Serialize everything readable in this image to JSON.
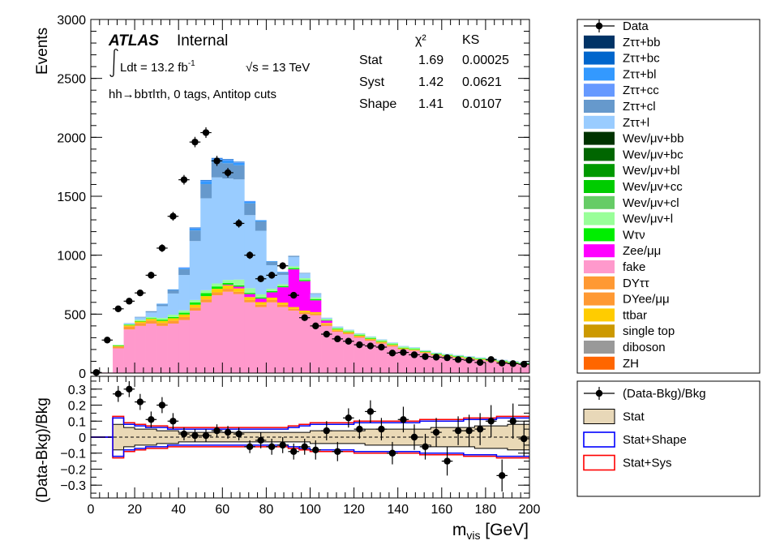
{
  "chart_data": [
    {
      "type": "bar",
      "stacked": true,
      "panel": "main",
      "xlim": [
        0,
        200
      ],
      "ylim": [
        0,
        3000
      ],
      "ylabel": "Events",
      "x_ticks": [
        0,
        20,
        40,
        60,
        80,
        100,
        120,
        140,
        160,
        180,
        200
      ],
      "y_ticks": [
        0,
        500,
        1000,
        1500,
        2000,
        2500,
        3000
      ],
      "bin_edges": [
        0,
        5,
        10,
        15,
        20,
        25,
        30,
        35,
        40,
        45,
        50,
        55,
        60,
        65,
        70,
        75,
        80,
        85,
        90,
        95,
        100,
        105,
        110,
        115,
        120,
        125,
        130,
        135,
        140,
        145,
        150,
        155,
        160,
        165,
        170,
        175,
        180,
        185,
        190,
        195,
        200
      ],
      "atlas_label": "ATLAS",
      "internal_label": "Internal",
      "lumi_prefix": "Ldt = 13.2 fb",
      "lumi_exponent": "-1",
      "energy_label": "√s = 13 TeV",
      "channel_label": "hh→bbτlτh, 0 tags, Antitop cuts",
      "stats_table": {
        "headers": [
          "χ²",
          "KS"
        ],
        "rows": [
          {
            "name": "Stat",
            "chi2": "1.69",
            "ks": "0.00025"
          },
          {
            "name": "Syst",
            "chi2": "1.42",
            "ks": "0.0621"
          },
          {
            "name": "Shape",
            "chi2": "1.41",
            "ks": "0.0107"
          }
        ]
      },
      "series": [
        {
          "name": "fake",
          "color": "#ff99cc",
          "values": [
            0,
            5,
            210,
            370,
            400,
            420,
            400,
            420,
            450,
            530,
            600,
            660,
            690,
            670,
            600,
            560,
            600,
            560,
            530,
            500,
            490,
            400,
            350,
            330,
            300,
            275,
            250,
            225,
            200,
            190,
            170,
            150,
            140,
            130,
            120,
            110,
            100,
            90,
            80,
            70
          ]
        },
        {
          "name": "DYττ",
          "color": "#ff9933",
          "values": [
            0,
            0,
            15,
            25,
            25,
            25,
            25,
            25,
            25,
            25,
            25,
            25,
            25,
            20,
            20,
            20,
            20,
            20,
            15,
            15,
            15,
            15,
            10,
            10,
            10,
            10,
            10,
            10,
            5,
            5,
            5,
            5,
            5,
            5,
            5,
            5,
            5,
            5,
            5,
            5
          ]
        },
        {
          "name": "ttbar",
          "color": "#ffcc00",
          "values": [
            0,
            0,
            5,
            10,
            12,
            15,
            18,
            20,
            22,
            25,
            28,
            30,
            30,
            28,
            25,
            22,
            20,
            18,
            15,
            15,
            12,
            10,
            10,
            8,
            8,
            6,
            6,
            5,
            5,
            4,
            4,
            4,
            3,
            3,
            3,
            3,
            2,
            2,
            2,
            2
          ]
        },
        {
          "name": "Zee/μμ",
          "color": "#ff00ff",
          "values": [
            0,
            0,
            0,
            0,
            0,
            0,
            0,
            0,
            0,
            0,
            0,
            0,
            5,
            15,
            25,
            30,
            45,
            130,
            320,
            250,
            100,
            20,
            0,
            0,
            0,
            0,
            0,
            0,
            0,
            0,
            0,
            0,
            0,
            0,
            0,
            0,
            0,
            0,
            0,
            0
          ]
        },
        {
          "name": "Wτν",
          "color": "#00ee00",
          "values": [
            0,
            0,
            5,
            5,
            5,
            5,
            10,
            10,
            15,
            20,
            25,
            20,
            15,
            10,
            10,
            10,
            10,
            10,
            10,
            10,
            10,
            5,
            5,
            5,
            5,
            5,
            5,
            5,
            5,
            5,
            5,
            5,
            5,
            5,
            5,
            5,
            5,
            5,
            5,
            5
          ]
        },
        {
          "name": "Wev/μv+l",
          "color": "#99ff99",
          "values": [
            0,
            0,
            5,
            5,
            10,
            10,
            15,
            20,
            20,
            20,
            25,
            25,
            25,
            50,
            40,
            25,
            20,
            15,
            15,
            15,
            15,
            10,
            10,
            10,
            10,
            10,
            10,
            10,
            10,
            10,
            5,
            5,
            5,
            5,
            5,
            5,
            5,
            5,
            5,
            5
          ]
        },
        {
          "name": "Zττ+l",
          "color": "#99ccff",
          "values": [
            0,
            0,
            0,
            10,
            20,
            40,
            100,
            180,
            300,
            500,
            780,
            900,
            860,
            850,
            620,
            540,
            200,
            80,
            80,
            40,
            30,
            10,
            10,
            5,
            5,
            5,
            5,
            5,
            5,
            5,
            5,
            5,
            5,
            5,
            5,
            5,
            5,
            5,
            5,
            5
          ]
        },
        {
          "name": "Zττ+cl",
          "color": "#6699cc",
          "values": [
            0,
            0,
            0,
            0,
            5,
            10,
            15,
            30,
            50,
            90,
            120,
            130,
            130,
            120,
            100,
            80,
            30,
            20,
            10,
            5,
            5,
            0,
            0,
            0,
            0,
            0,
            0,
            0,
            0,
            0,
            0,
            0,
            0,
            0,
            0,
            0,
            0,
            0,
            0,
            0
          ]
        },
        {
          "name": "Zττ+bl",
          "color": "#3399ff",
          "values": [
            0,
            0,
            0,
            0,
            0,
            0,
            5,
            5,
            10,
            15,
            25,
            25,
            25,
            20,
            15,
            10,
            5,
            5,
            0,
            0,
            0,
            0,
            0,
            0,
            0,
            0,
            0,
            0,
            0,
            0,
            0,
            0,
            0,
            0,
            0,
            0,
            0,
            0,
            0,
            0
          ]
        },
        {
          "name": "Zττ+cc",
          "color": "#6699ff",
          "values": [
            0,
            0,
            0,
            0,
            0,
            0,
            0,
            0,
            5,
            5,
            5,
            5,
            5,
            5,
            5,
            0,
            0,
            0,
            0,
            0,
            0,
            0,
            0,
            0,
            0,
            0,
            0,
            0,
            0,
            0,
            0,
            0,
            0,
            0,
            0,
            0,
            0,
            0,
            0,
            0
          ]
        },
        {
          "name": "Zττ+bc",
          "color": "#0066cc",
          "values": [
            0,
            0,
            0,
            0,
            0,
            0,
            0,
            0,
            0,
            5,
            5,
            5,
            5,
            5,
            0,
            0,
            0,
            0,
            0,
            0,
            0,
            0,
            0,
            0,
            0,
            0,
            0,
            0,
            0,
            0,
            0,
            0,
            0,
            0,
            0,
            0,
            0,
            0,
            0,
            0
          ]
        },
        {
          "name": "Zττ+bb",
          "color": "#003366",
          "values": [
            0,
            0,
            0,
            0,
            0,
            0,
            0,
            0,
            0,
            0,
            0,
            0,
            0,
            0,
            0,
            0,
            0,
            0,
            0,
            0,
            0,
            0,
            0,
            0,
            0,
            0,
            0,
            0,
            0,
            0,
            0,
            0,
            0,
            0,
            0,
            0,
            0,
            0,
            0,
            0
          ]
        }
      ],
      "data": {
        "name": "Data",
        "y": [
          5,
          280,
          545,
          610,
          680,
          830,
          1060,
          1330,
          1640,
          1960,
          2040,
          1800,
          1700,
          1270,
          1000,
          800,
          830,
          910,
          660,
          470,
          400,
          330,
          290,
          270,
          240,
          230,
          220,
          170,
          175,
          155,
          140,
          135,
          130,
          115,
          110,
          90,
          115,
          85,
          80,
          75
        ],
        "yerr": [
          3,
          17,
          23,
          25,
          26,
          29,
          33,
          37,
          41,
          44,
          45,
          43,
          41,
          36,
          32,
          28,
          29,
          30,
          26,
          22,
          20,
          18,
          17,
          16,
          16,
          15,
          15,
          13,
          13,
          12,
          12,
          12,
          11,
          11,
          10,
          9,
          11,
          9,
          9,
          9
        ]
      },
      "legend": {
        "placement": "right",
        "entries": [
          {
            "label": "Data",
            "marker": "point"
          },
          {
            "label": "Zττ+bb",
            "color": "#003366"
          },
          {
            "label": "Zττ+bc",
            "color": "#0066cc"
          },
          {
            "label": "Zττ+bl",
            "color": "#3399ff"
          },
          {
            "label": "Zττ+cc",
            "color": "#6699ff"
          },
          {
            "label": "Zττ+cl",
            "color": "#6699cc"
          },
          {
            "label": "Zττ+l",
            "color": "#99ccff"
          },
          {
            "label": "Wev/μv+bb",
            "color": "#003300"
          },
          {
            "label": "Wev/μv+bc",
            "color": "#006600"
          },
          {
            "label": "Wev/μv+bl",
            "color": "#009900"
          },
          {
            "label": "Wev/μv+cc",
            "color": "#00cc00"
          },
          {
            "label": "Wev/μv+cl",
            "color": "#66cc66"
          },
          {
            "label": "Wev/μv+l",
            "color": "#99ff99"
          },
          {
            "label": "Wτν",
            "color": "#00ee00"
          },
          {
            "label": "Zee/μμ",
            "color": "#ff00ff"
          },
          {
            "label": "fake",
            "color": "#ff99cc"
          },
          {
            "label": "DYττ",
            "color": "#ff9933"
          },
          {
            "label": "DYee/μμ",
            "color": "#ff9933"
          },
          {
            "label": "ttbar",
            "color": "#ffcc00"
          },
          {
            "label": "single top",
            "color": "#cc9900"
          },
          {
            "label": "diboson",
            "color": "#999999"
          },
          {
            "label": "ZH",
            "color": "#ff6600"
          }
        ]
      }
    },
    {
      "type": "scatter",
      "panel": "ratio",
      "xlim": [
        0,
        200
      ],
      "ylim": [
        -0.38,
        0.38
      ],
      "xlabel": "m",
      "xlabel_sub": "vis",
      "xlabel_unit": " [GeV]",
      "ylabel": "(Data-Bkg)/Bkg",
      "x_ticks": [
        0,
        20,
        40,
        60,
        80,
        100,
        120,
        140,
        160,
        180,
        200
      ],
      "y_ticks": [
        -0.3,
        -0.2,
        -0.1,
        0,
        0.1,
        0.2,
        0.3
      ],
      "y_tick_labels": [
        "−0.3",
        "−0.2",
        "−0.1",
        "0",
        "0.1",
        "0.2",
        "0.3"
      ],
      "ratio": {
        "x": [
          12.5,
          17.5,
          22.5,
          27.5,
          32.5,
          37.5,
          42.5,
          47.5,
          52.5,
          57.5,
          62.5,
          67.5,
          72.5,
          77.5,
          82.5,
          87.5,
          92.5,
          97.5,
          102.5,
          107.5,
          112.5,
          117.5,
          122.5,
          127.5,
          132.5,
          137.5,
          142.5,
          147.5,
          152.5,
          157.5,
          162.5,
          167.5,
          172.5,
          177.5,
          182.5,
          187.5,
          192.5,
          197.5
        ],
        "y": [
          0.27,
          0.3,
          0.22,
          0.11,
          0.2,
          0.1,
          0.02,
          0.01,
          0.01,
          0.04,
          0.03,
          0.02,
          -0.06,
          -0.02,
          -0.06,
          -0.05,
          -0.09,
          -0.06,
          -0.08,
          0.04,
          -0.09,
          0.12,
          0.05,
          0.16,
          0.05,
          -0.1,
          0.11,
          0.0,
          -0.06,
          0.03,
          -0.15,
          0.04,
          0.04,
          0.05,
          0.1,
          -0.24,
          0.1,
          -0.01
        ],
        "yerr": [
          0.05,
          0.05,
          0.05,
          0.05,
          0.05,
          0.05,
          0.04,
          0.04,
          0.04,
          0.04,
          0.04,
          0.04,
          0.04,
          0.05,
          0.05,
          0.05,
          0.05,
          0.05,
          0.06,
          0.06,
          0.06,
          0.06,
          0.06,
          0.07,
          0.07,
          0.07,
          0.08,
          0.08,
          0.08,
          0.09,
          0.09,
          0.09,
          0.1,
          0.1,
          0.1,
          0.1,
          0.11,
          0.11
        ]
      },
      "stat_band": [
        0,
        0,
        0.08,
        0.06,
        0.05,
        0.05,
        0.04,
        0.04,
        0.03,
        0.03,
        0.03,
        0.03,
        0.03,
        0.03,
        0.03,
        0.03,
        0.03,
        0.03,
        0.03,
        0.03,
        0.04,
        0.04,
        0.04,
        0.04,
        0.04,
        0.05,
        0.05,
        0.05,
        0.05,
        0.05,
        0.05,
        0.06,
        0.06,
        0.06,
        0.06,
        0.07,
        0.07,
        0.07,
        0.08,
        0.08
      ],
      "shape_band": [
        0,
        0,
        0.12,
        0.08,
        0.07,
        0.06,
        0.06,
        0.05,
        0.05,
        0.05,
        0.05,
        0.05,
        0.05,
        0.05,
        0.05,
        0.05,
        0.05,
        0.05,
        0.06,
        0.07,
        0.08,
        0.08,
        0.08,
        0.08,
        0.09,
        0.09,
        0.09,
        0.09,
        0.09,
        0.09,
        0.1,
        0.1,
        0.1,
        0.1,
        0.11,
        0.11,
        0.11,
        0.12,
        0.12,
        0.12
      ],
      "sys_band": [
        0,
        0,
        0.13,
        0.09,
        0.08,
        0.07,
        0.07,
        0.06,
        0.06,
        0.06,
        0.06,
        0.06,
        0.06,
        0.06,
        0.06,
        0.06,
        0.06,
        0.06,
        0.07,
        0.08,
        0.09,
        0.09,
        0.09,
        0.09,
        0.1,
        0.1,
        0.1,
        0.1,
        0.1,
        0.1,
        0.11,
        0.11,
        0.11,
        0.11,
        0.12,
        0.12,
        0.12,
        0.13,
        0.13,
        0.13
      ],
      "legend": {
        "placement": "right",
        "entries": [
          {
            "label": "(Data-Bkg)/Bkg",
            "marker": "point"
          },
          {
            "label": "Stat",
            "fill": "#e8d8b8",
            "stroke": "#000000"
          },
          {
            "label": "Stat+Shape",
            "stroke": "#0000ff"
          },
          {
            "label": "Stat+Sys",
            "stroke": "#ff0000"
          }
        ]
      }
    }
  ]
}
